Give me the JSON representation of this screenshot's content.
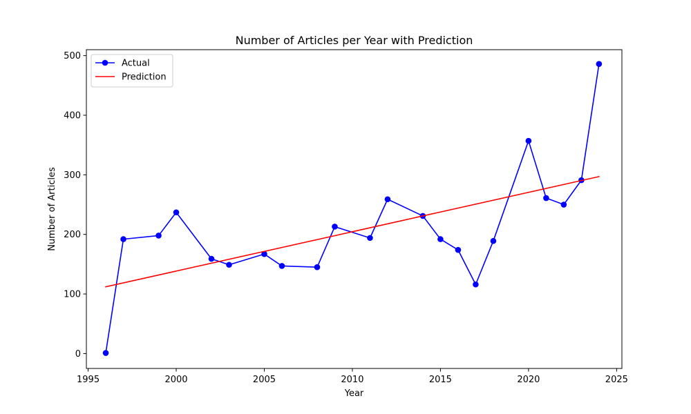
{
  "chart_data": {
    "type": "line",
    "title": "Number of Articles per Year with Prediction",
    "xlabel": "Year",
    "ylabel": "Number of Articles",
    "xlim": [
      1994.9,
      2025.3
    ],
    "ylim": [
      -25,
      510
    ],
    "xticks": [
      1995,
      2000,
      2005,
      2010,
      2015,
      2020,
      2025
    ],
    "yticks": [
      0,
      100,
      200,
      300,
      400,
      500
    ],
    "grid": false,
    "legend_position": "top-left",
    "series": [
      {
        "name": "Actual",
        "color": "#0000ff",
        "marker": "circle",
        "x": [
          1996,
          1997,
          1999,
          2000,
          2002,
          2003,
          2005,
          2006,
          2008,
          2009,
          2011,
          2012,
          2014,
          2015,
          2016,
          2017,
          2018,
          2020,
          2021,
          2022,
          2023,
          2024
        ],
        "y": [
          1,
          192,
          198,
          237,
          159,
          149,
          167,
          147,
          145,
          213,
          194,
          259,
          231,
          192,
          174,
          116,
          189,
          357,
          261,
          250,
          291,
          486
        ]
      },
      {
        "name": "Prediction",
        "color": "#ff0000",
        "marker": "none",
        "x": [
          1996,
          2024
        ],
        "y": [
          112,
          297
        ]
      }
    ]
  }
}
